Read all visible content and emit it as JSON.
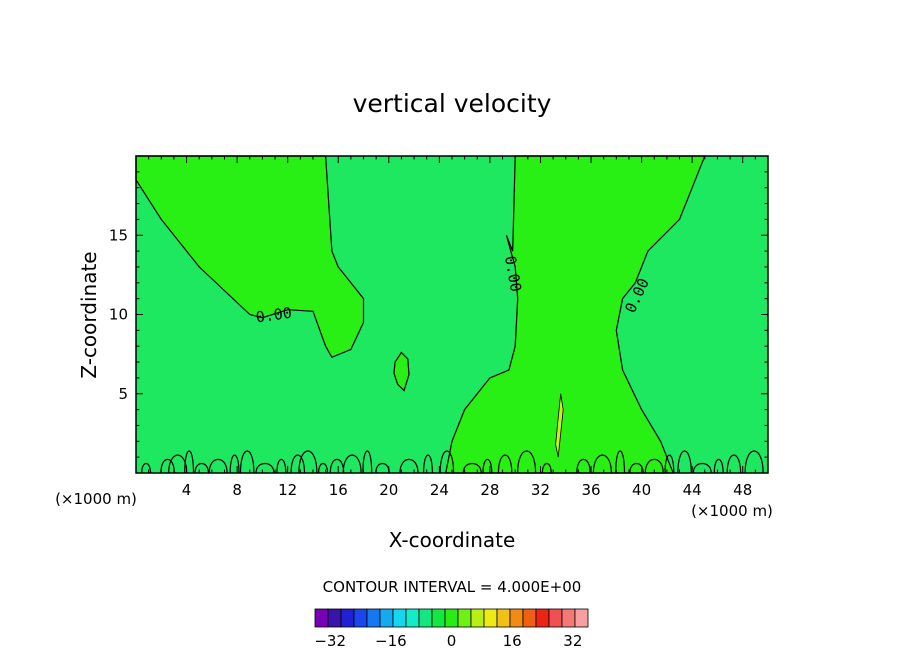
{
  "chart_data": {
    "type": "contour",
    "title": "vertical velocity",
    "xlabel": "X-coordinate",
    "ylabel": "Z-coordinate",
    "x_unit_left": "(×1000 m)",
    "x_unit_right": "(×1000 m)",
    "xlim": [
      0,
      50
    ],
    "ylim": [
      0,
      20
    ],
    "x_ticks": [
      4,
      8,
      12,
      16,
      20,
      24,
      28,
      32,
      36,
      40,
      44,
      48
    ],
    "y_ticks": [
      5,
      10,
      15
    ],
    "contour_labels": [
      "0.00",
      "0.00",
      "0.00"
    ],
    "contour_interval_text": "CONTOUR INTERVAL = 4.000E+00",
    "colorbar": {
      "min": -36,
      "max": 36,
      "tick_values": [
        -32,
        -16,
        0,
        16,
        32
      ],
      "tick_labels": [
        "−32",
        "−16",
        "0",
        "16",
        "32"
      ],
      "colors": [
        "#7a00b8",
        "#3a14a8",
        "#1e22d2",
        "#1a46ee",
        "#1478f2",
        "#14aaf0",
        "#14d6ee",
        "#14ecc6",
        "#14e680",
        "#14e840",
        "#2aec14",
        "#70f014",
        "#b8f014",
        "#ecec14",
        "#f0c214",
        "#f08c14",
        "#f06014",
        "#ec2414",
        "#f05050",
        "#f47878",
        "#f8a0a0"
      ]
    },
    "field_colors": {
      "negative": "#1ee860",
      "positive": "#28f014"
    }
  }
}
